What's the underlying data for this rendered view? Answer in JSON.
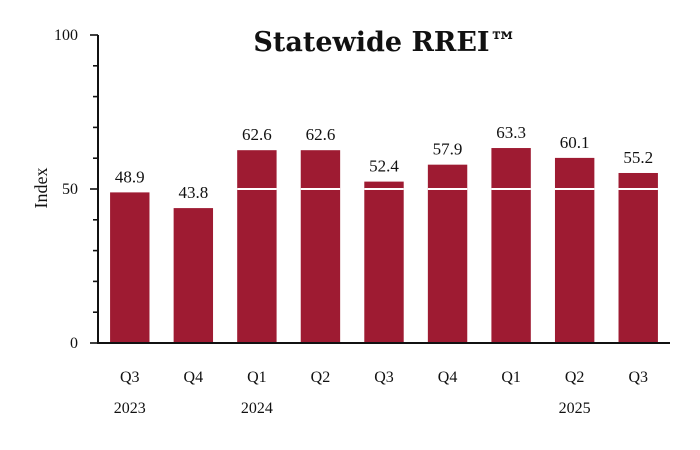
{
  "chart_data": {
    "type": "bar",
    "title": "Statewide RREI™",
    "xlabel": "",
    "ylabel": "Index",
    "ylim": [
      0,
      100
    ],
    "yticks": [
      0,
      50,
      100
    ],
    "grid": false,
    "reference_line": 50,
    "categories": [
      "Q3",
      "Q4",
      "Q1",
      "Q2",
      "Q3",
      "Q4",
      "Q1",
      "Q2",
      "Q3"
    ],
    "year_labels": [
      "2023",
      "",
      "2024",
      "",
      "",
      "",
      "",
      "2025",
      ""
    ],
    "values": [
      48.9,
      43.8,
      62.6,
      62.6,
      52.4,
      57.9,
      63.3,
      60.1,
      55.2
    ],
    "value_labels": [
      "48.9",
      "43.8",
      "62.6",
      "62.6",
      "52.4",
      "57.9",
      "63.3",
      "60.1",
      "55.2"
    ]
  },
  "colors": {
    "bar": "#9e1b32",
    "reference_line": "#ffffff",
    "axis": "#111111"
  }
}
